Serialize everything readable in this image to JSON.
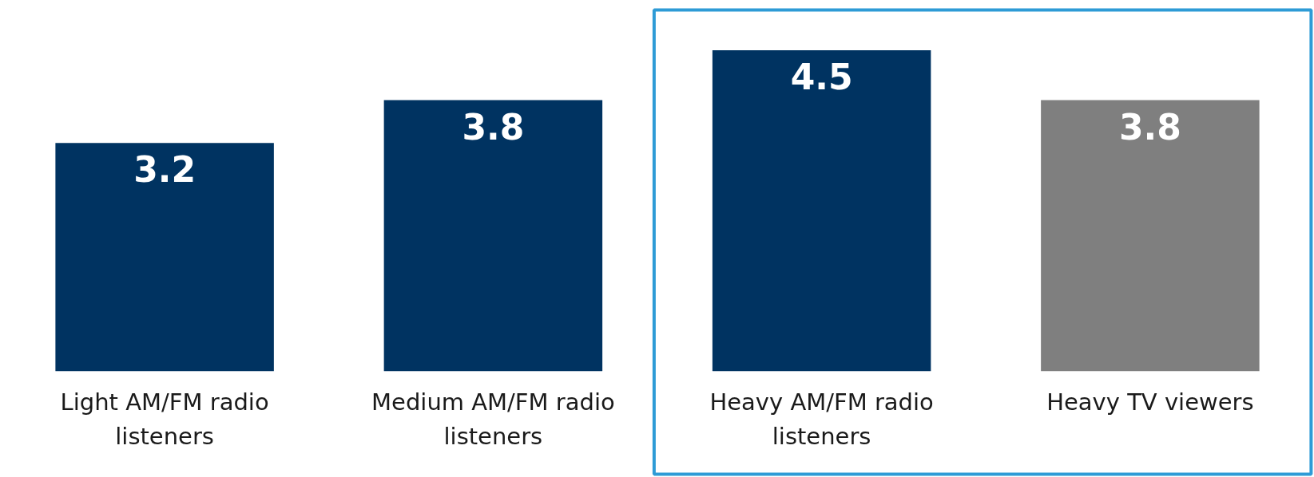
{
  "chart_data": {
    "type": "bar",
    "categories": [
      "Light AM/FM radio listeners",
      "Medium AM/FM radio listeners",
      "Heavy AM/FM radio listeners",
      "Heavy TV viewers"
    ],
    "values": [
      3.2,
      3.8,
      4.5,
      3.8
    ],
    "colors": [
      "#003361",
      "#003361",
      "#003361",
      "#7f7f7f"
    ],
    "data_labels": true
  }
}
